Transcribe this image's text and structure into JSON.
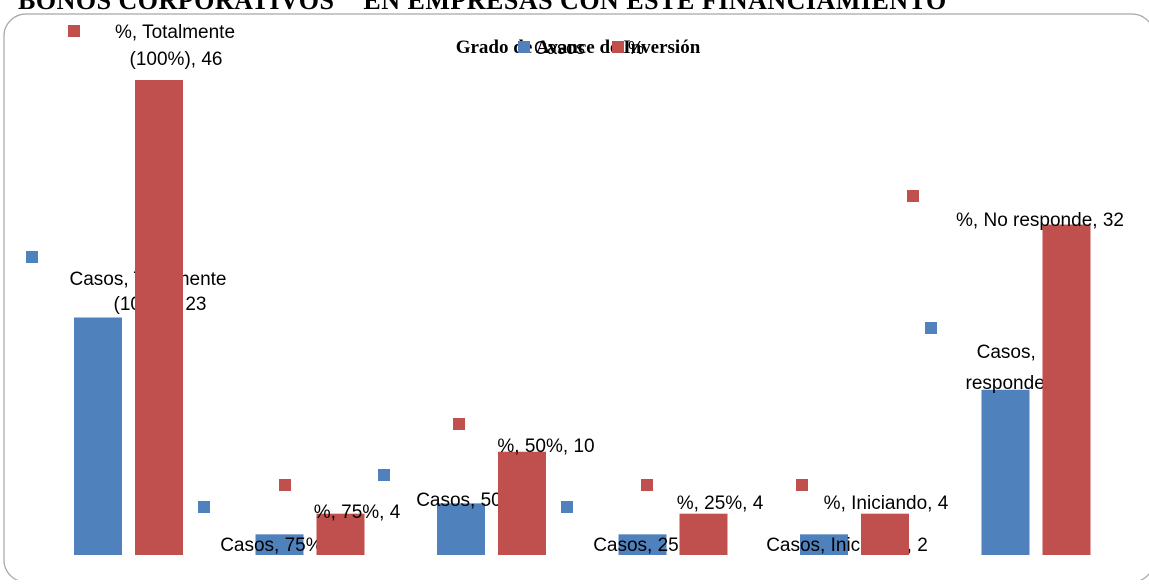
{
  "page_heading": "BONOS CORPORATIVOS \" EN EMPRESAS CON ESTE FINANCIAMIENTO",
  "chart_data": {
    "type": "bar",
    "title": "Grado de Avance de Inversión",
    "categories": [
      "Totalmente (100%)",
      "75%",
      "50%",
      "25%",
      "Iniciando",
      "No responde"
    ],
    "series": [
      {
        "name": "Casos",
        "values": [
          23,
          2,
          5,
          2,
          2,
          16
        ],
        "color": "#4F81BD"
      },
      {
        "name": "%",
        "values": [
          46,
          4,
          10,
          4,
          4,
          32
        ],
        "color": "#C0504D"
      }
    ],
    "data_labels": [
      [
        "Casos, Totalmente (100%), 23",
        "Casos, 75%, 2",
        "Casos, 50%, 5",
        "Casos, 25%, 2",
        "Casos, Iniciando, 2",
        "Casos, No responde, 16"
      ],
      [
        "%, Totalmente (100%), 46",
        "%, 75%, 4",
        "%, 50%, 10",
        "%, 25%, 4",
        "%, Iniciando, 4",
        "%, No responde, 32"
      ]
    ],
    "ylim": [
      0,
      46
    ],
    "grid": false,
    "legend_position": "top",
    "xlabel": "",
    "ylabel": ""
  }
}
